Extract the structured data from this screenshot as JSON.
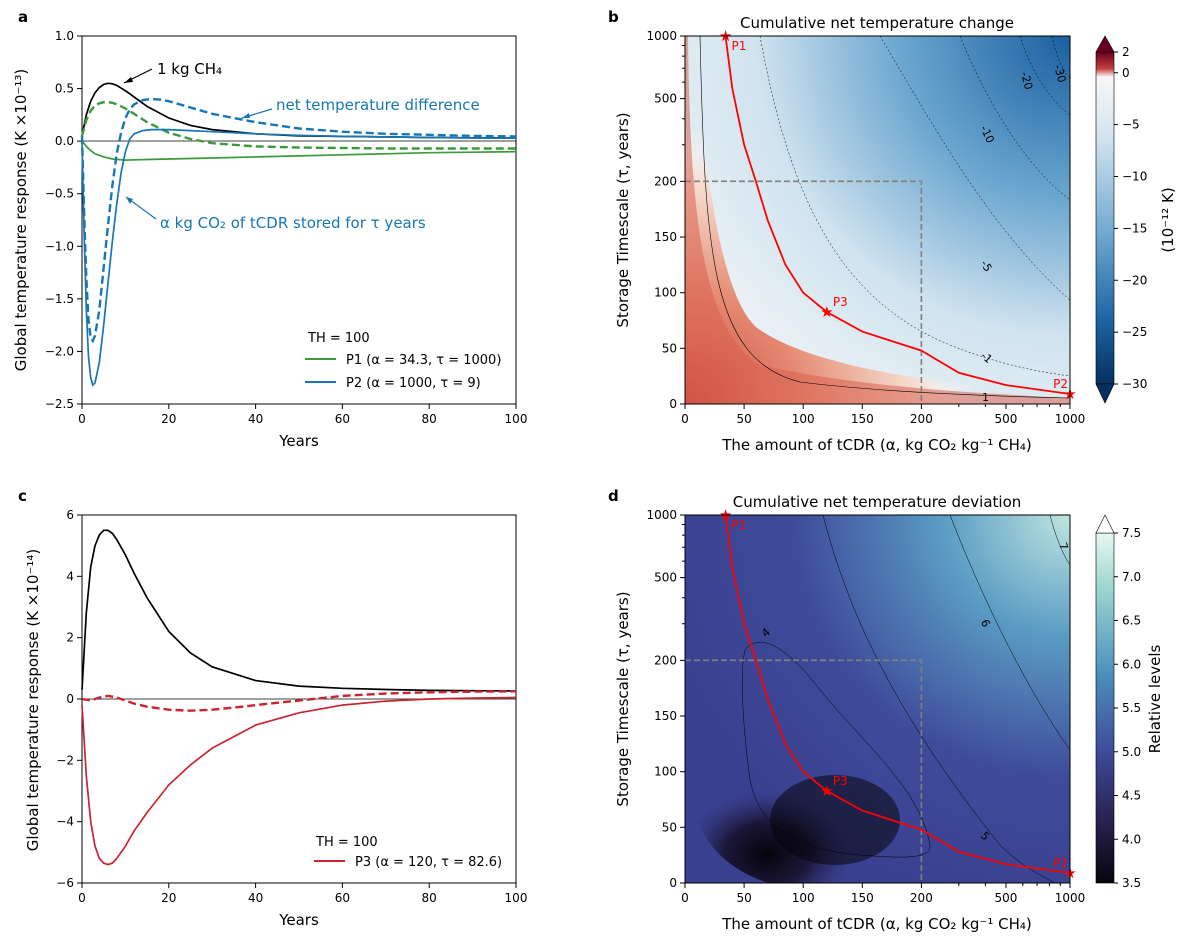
{
  "panel_labels": {
    "a": "a",
    "b": "b",
    "c": "c",
    "d": "d"
  },
  "colors": {
    "ch4": "#000000",
    "p1": "#3c9a3c",
    "p2": "#1777b4",
    "p3": "#cc2330",
    "path": "#ff0000",
    "star": "#ff0000",
    "box": "#808080"
  },
  "chart_data": [
    {
      "id": "a",
      "type": "line",
      "xlabel": "Years",
      "ylabel": "Global temperature response (K ×10⁻¹³)",
      "xlim": [
        0,
        100
      ],
      "ylim": [
        -2.5,
        1.0
      ],
      "xticks": [
        "0",
        "20",
        "40",
        "60",
        "80",
        "100"
      ],
      "yticks": [
        "1.0",
        "0.5",
        "0.0",
        "−0.5",
        "−1.0",
        "−1.5",
        "−2.0",
        "−2.5"
      ],
      "legend_title": "TH = 100",
      "legend": [
        "P1 (α = 34.3, τ = 1000)",
        "P2 (α = 1000, τ = 9)"
      ],
      "annotations": [
        "1 kg CH₄",
        "net temperature difference",
        "α kg CO₂ of tCDR stored for τ years"
      ],
      "series": [
        {
          "key": "ch4",
          "style": "solid",
          "color_key": "ch4",
          "x": [
            0,
            1,
            2,
            3,
            4,
            5,
            6,
            7,
            8,
            10,
            12,
            15,
            20,
            25,
            30,
            40,
            50,
            60,
            70,
            80,
            90,
            100
          ],
          "y": [
            0.05,
            0.25,
            0.38,
            0.46,
            0.51,
            0.54,
            0.55,
            0.545,
            0.53,
            0.48,
            0.42,
            0.33,
            0.22,
            0.15,
            0.11,
            0.07,
            0.05,
            0.045,
            0.04,
            0.035,
            0.032,
            0.03
          ]
        },
        {
          "key": "p1_co2",
          "style": "solid",
          "color_key": "p1",
          "x": [
            0,
            1,
            2,
            3,
            5,
            7,
            10,
            15,
            20,
            30,
            40,
            50,
            60,
            70,
            80,
            90,
            100
          ],
          "y": [
            0,
            -0.05,
            -0.09,
            -0.12,
            -0.15,
            -0.17,
            -0.18,
            -0.175,
            -0.17,
            -0.16,
            -0.15,
            -0.14,
            -0.13,
            -0.12,
            -0.11,
            -0.105,
            -0.1
          ]
        },
        {
          "key": "p1_net",
          "style": "dashed",
          "color_key": "p1",
          "x": [
            0,
            1,
            2,
            3,
            4,
            5,
            6,
            7,
            8,
            10,
            12,
            15,
            20,
            25,
            30,
            40,
            50,
            60,
            70,
            80,
            90,
            100
          ],
          "y": [
            0.05,
            0.2,
            0.29,
            0.34,
            0.36,
            0.37,
            0.37,
            0.365,
            0.35,
            0.31,
            0.26,
            0.18,
            0.08,
            0.02,
            -0.02,
            -0.05,
            -0.06,
            -0.065,
            -0.07,
            -0.07,
            -0.07,
            -0.07
          ]
        },
        {
          "key": "p2_co2",
          "style": "solid",
          "color_key": "p2",
          "x": [
            0,
            0.5,
            1,
            1.5,
            2,
            2.5,
            3,
            4,
            5,
            6,
            7,
            8,
            9,
            10,
            11,
            12,
            14,
            16,
            18,
            20,
            25,
            30,
            40,
            50,
            60,
            70,
            80,
            90,
            100
          ],
          "y": [
            0,
            -0.9,
            -1.6,
            -2.05,
            -2.25,
            -2.32,
            -2.3,
            -2.1,
            -1.75,
            -1.35,
            -0.95,
            -0.6,
            -0.3,
            -0.1,
            0.02,
            0.07,
            0.1,
            0.11,
            0.11,
            0.11,
            0.1,
            0.09,
            0.07,
            0.055,
            0.045,
            0.04,
            0.035,
            0.03,
            0.03
          ]
        },
        {
          "key": "p2_net",
          "style": "dashed",
          "color_key": "p2",
          "x": [
            0,
            0.5,
            1,
            1.5,
            2,
            2.5,
            3,
            4,
            5,
            6,
            7,
            8,
            9,
            10,
            11,
            12,
            14,
            16,
            18,
            20,
            25,
            30,
            35,
            40,
            50,
            60,
            70,
            80,
            90,
            100
          ],
          "y": [
            0.05,
            -0.7,
            -1.3,
            -1.7,
            -1.87,
            -1.9,
            -1.85,
            -1.6,
            -1.2,
            -0.8,
            -0.42,
            -0.12,
            0.08,
            0.22,
            0.3,
            0.35,
            0.39,
            0.4,
            0.395,
            0.38,
            0.32,
            0.26,
            0.22,
            0.18,
            0.12,
            0.09,
            0.07,
            0.06,
            0.05,
            0.045
          ]
        }
      ]
    },
    {
      "id": "b",
      "type": "heatmap",
      "title": "Cumulative net temperature change",
      "xlabel": "The amount of tCDR (α, kg CO₂ kg⁻¹ CH₄)",
      "ylabel": "Storage Timescale (τ, years)",
      "xticks": [
        "0",
        "50",
        "100",
        "150",
        "200",
        "500",
        "1000"
      ],
      "yticks": [
        "0",
        "50",
        "100",
        "150",
        "200",
        "500",
        "1000"
      ],
      "colorbar_label": "(10⁻¹² K)",
      "colorbar_ticks": [
        "2",
        "0",
        "−5",
        "−10",
        "−15",
        "−20",
        "−25",
        "−30"
      ],
      "colorbar_range": [
        -30,
        2
      ],
      "contour_labels": [
        "1",
        "-1",
        "-5",
        "-10",
        "-20",
        "-30"
      ],
      "points": [
        {
          "label": "P1",
          "alpha": 34.3,
          "tau": 1000
        },
        {
          "label": "P2",
          "alpha": 1000,
          "tau": 9
        },
        {
          "label": "P3",
          "alpha": 120,
          "tau": 82.6
        }
      ],
      "path_points": [
        [
          34.3,
          1000
        ],
        [
          40,
          560
        ],
        [
          50,
          300
        ],
        [
          60,
          200
        ],
        [
          70,
          165
        ],
        [
          85,
          125
        ],
        [
          100,
          100
        ],
        [
          120,
          82.6
        ],
        [
          150,
          65
        ],
        [
          200,
          48
        ],
        [
          300,
          28
        ],
        [
          500,
          17
        ],
        [
          1000,
          9
        ]
      ],
      "box": {
        "alpha_max": 200,
        "tau_max": 200
      }
    },
    {
      "id": "c",
      "type": "line",
      "xlabel": "Years",
      "ylabel": "Global temperature response (K ×10⁻¹⁴)",
      "xlim": [
        0,
        100
      ],
      "ylim": [
        -6,
        6
      ],
      "xticks": [
        "0",
        "20",
        "40",
        "60",
        "80",
        "100"
      ],
      "yticks": [
        "6",
        "4",
        "2",
        "0",
        "−2",
        "−4",
        "−6"
      ],
      "legend_title": "TH = 100",
      "legend": [
        "P3 (α = 120, τ = 82.6)"
      ],
      "series": [
        {
          "key": "ch4",
          "style": "solid",
          "color_key": "ch4",
          "x": [
            0,
            1,
            2,
            3,
            4,
            5,
            6,
            7,
            8,
            10,
            12,
            15,
            20,
            25,
            30,
            40,
            50,
            60,
            70,
            80,
            90,
            100
          ],
          "y": [
            0.3,
            2.8,
            4.3,
            5.0,
            5.35,
            5.5,
            5.5,
            5.4,
            5.2,
            4.7,
            4.1,
            3.3,
            2.2,
            1.5,
            1.05,
            0.6,
            0.42,
            0.35,
            0.31,
            0.28,
            0.27,
            0.26
          ]
        },
        {
          "key": "p3_co2",
          "style": "solid",
          "color_key": "p3",
          "x": [
            0,
            1,
            2,
            3,
            4,
            5,
            6,
            7,
            8,
            10,
            12,
            15,
            20,
            25,
            30,
            40,
            50,
            60,
            70,
            80,
            90,
            100
          ],
          "y": [
            -0.2,
            -2.5,
            -4.0,
            -4.8,
            -5.2,
            -5.35,
            -5.4,
            -5.35,
            -5.2,
            -4.8,
            -4.3,
            -3.7,
            -2.8,
            -2.15,
            -1.6,
            -0.85,
            -0.45,
            -0.2,
            -0.07,
            0.0,
            0.03,
            0.05
          ]
        },
        {
          "key": "p3_net",
          "style": "dashed",
          "color_key": "p3",
          "x": [
            0,
            2,
            4,
            6,
            8,
            10,
            12,
            15,
            20,
            25,
            30,
            35,
            40,
            50,
            60,
            70,
            80,
            90,
            100
          ],
          "y": [
            0,
            -0.05,
            0.05,
            0.1,
            0.05,
            -0.05,
            -0.15,
            -0.25,
            -0.35,
            -0.38,
            -0.35,
            -0.28,
            -0.2,
            -0.05,
            0.1,
            0.18,
            0.22,
            0.24,
            0.25
          ]
        }
      ]
    },
    {
      "id": "d",
      "type": "heatmap",
      "title": "Cumulative net temperature deviation",
      "xlabel": "The amount of tCDR (α, kg CO₂ kg⁻¹ CH₄)",
      "ylabel": "Storage Timescale (τ, years)",
      "xticks": [
        "0",
        "50",
        "100",
        "150",
        "200",
        "500",
        "1000"
      ],
      "yticks": [
        "0",
        "50",
        "100",
        "150",
        "200",
        "500",
        "1000"
      ],
      "colorbar_label": "Relative levels",
      "colorbar_ticks": [
        "7.5",
        "7.0",
        "6.5",
        "6.0",
        "5.5",
        "5.0",
        "4.5",
        "4.0",
        "3.5"
      ],
      "colorbar_range": [
        3.5,
        7.5
      ],
      "contour_labels": [
        "4",
        "5",
        "6",
        "7"
      ],
      "points": [
        {
          "label": "P1",
          "alpha": 34.3,
          "tau": 1000
        },
        {
          "label": "P2",
          "alpha": 1000,
          "tau": 9
        },
        {
          "label": "P3",
          "alpha": 120,
          "tau": 82.6
        }
      ],
      "path_points": [
        [
          34.3,
          1000
        ],
        [
          40,
          560
        ],
        [
          50,
          300
        ],
        [
          60,
          200
        ],
        [
          70,
          165
        ],
        [
          85,
          125
        ],
        [
          100,
          100
        ],
        [
          120,
          82.6
        ],
        [
          150,
          65
        ],
        [
          200,
          48
        ],
        [
          300,
          28
        ],
        [
          500,
          17
        ],
        [
          1000,
          9
        ]
      ],
      "box": {
        "alpha_max": 200,
        "tau_max": 200
      }
    }
  ]
}
